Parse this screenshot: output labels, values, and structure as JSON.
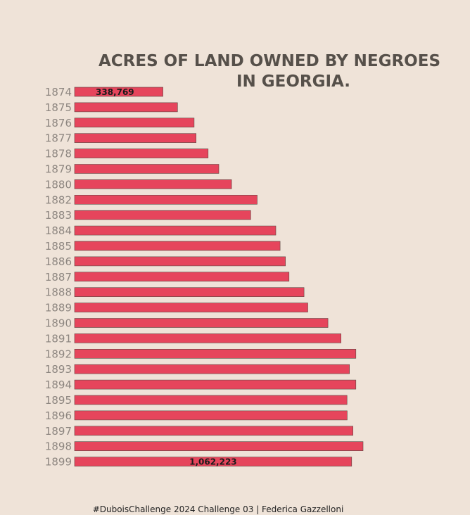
{
  "chart_data": {
    "type": "bar",
    "orientation": "horizontal",
    "title_lines": [
      "ACRES OF LAND OWNED BY NEGROES",
      "IN GEORGIA."
    ],
    "categories": [
      "1874",
      "1875",
      "1876",
      "1877",
      "1878",
      "1879",
      "1880",
      "1882",
      "1883",
      "1884",
      "1885",
      "1886",
      "1887",
      "1888",
      "1889",
      "1890",
      "1891",
      "1892",
      "1893",
      "1894",
      "1895",
      "1896",
      "1897",
      "1898",
      "1899"
    ],
    "values": [
      338769,
      394700,
      458400,
      465800,
      512000,
      553000,
      601800,
      700000,
      675300,
      771600,
      788000,
      808400,
      822300,
      879600,
      894300,
      971300,
      1021500,
      1078500,
      1054000,
      1078500,
      1044500,
      1045000,
      1067400,
      1106000,
      1062223
    ],
    "data_labels": [
      {
        "category": "1874",
        "text": "338,769"
      },
      {
        "category": "1899",
        "text": "1,062,223"
      }
    ],
    "xlim": [
      0,
      1106000
    ],
    "grid": false,
    "legend": "none",
    "colors": {
      "bar": "#e6455c",
      "background": "#efe3d8",
      "title": "#56504a",
      "tick_label": "#8d8680"
    }
  },
  "caption": "#DuboisChallenge 2024 Challenge 03 | Federica Gazzelloni"
}
